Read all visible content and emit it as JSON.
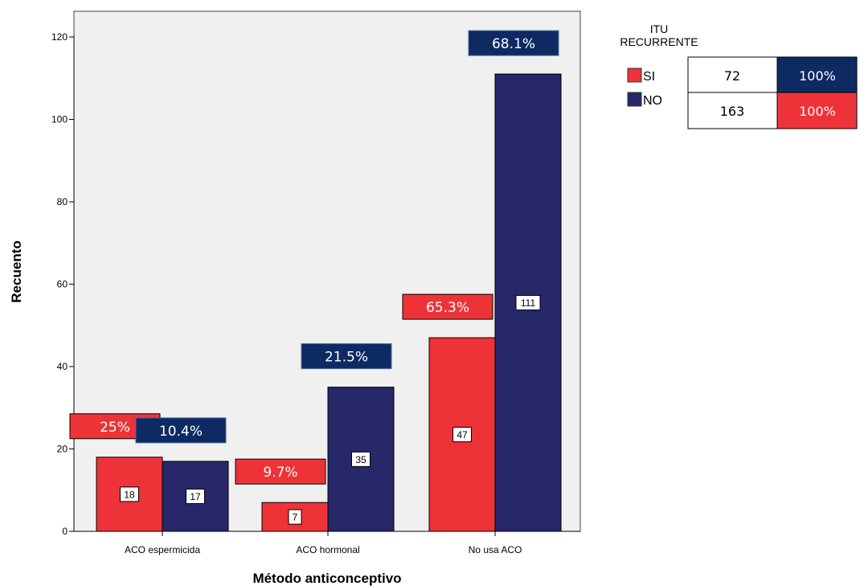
{
  "colors": {
    "si": "#ee3338",
    "no": "#262869",
    "label_no": "#0e2a63",
    "plot_bg": "#f0f0f0"
  },
  "chart_data": {
    "type": "bar",
    "xlabel": "Método anticonceptivo",
    "ylabel": "Recuento",
    "ylim": [
      0,
      120
    ],
    "yticks": [
      0,
      20,
      40,
      60,
      80,
      100,
      120
    ],
    "categories": [
      "ACO espermicida",
      "ACO hormonal",
      "No usa ACO"
    ],
    "series": [
      {
        "name": "SI",
        "values": [
          18,
          7,
          47
        ],
        "percent_labels": [
          "25%",
          "9.7%",
          "65.3%"
        ]
      },
      {
        "name": "NO",
        "values": [
          17,
          35,
          111
        ],
        "percent_labels": [
          "10.4%",
          "21.5%",
          "68.1%"
        ]
      }
    ],
    "legend": {
      "title_lines": [
        "ITU",
        "RECURRENTE"
      ],
      "placement": "right",
      "rows": [
        {
          "label": "SI",
          "total": "72",
          "percent": "100%"
        },
        {
          "label": "NO",
          "total": "163",
          "percent": "100%"
        }
      ]
    }
  }
}
